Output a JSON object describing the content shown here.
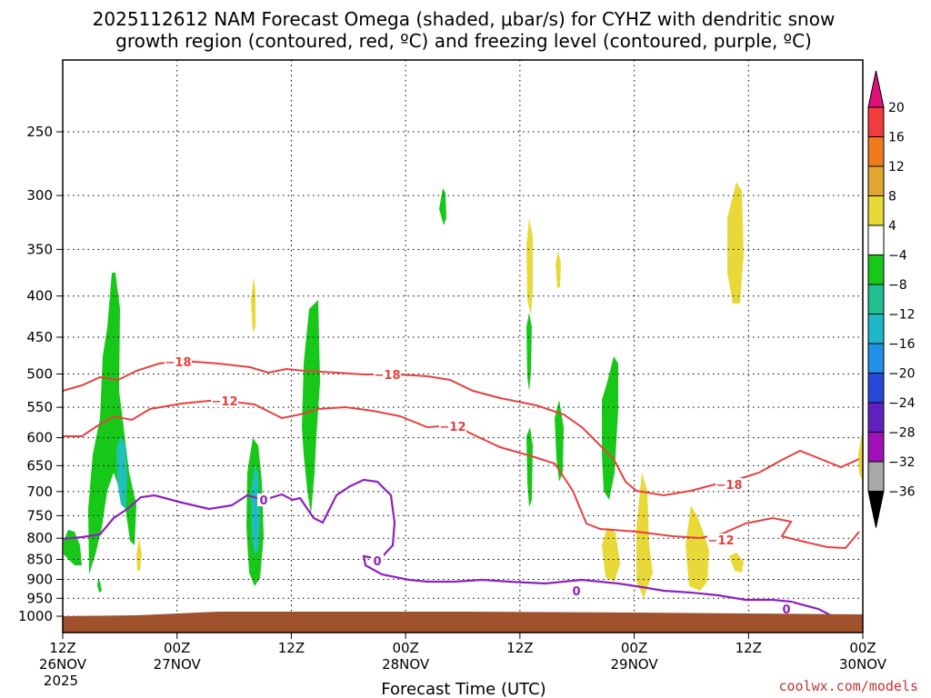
{
  "chart_data": {
    "type": "contour",
    "title": [
      "2025112612 NAM Forecast Omega (shaded, μbar/s) for CYHZ with dendritic snow",
      "growth region (contoured, red, ºC) and freezing level (contoured, purple, ºC)"
    ],
    "xlabel": "Forecast Time (UTC)",
    "credit": "coolwx.com/models",
    "y_levels": [
      250,
      300,
      350,
      400,
      450,
      500,
      550,
      600,
      650,
      700,
      750,
      800,
      850,
      900,
      950,
      1000
    ],
    "x_ticks": [
      {
        "line1": "12Z",
        "line2": "26NOV",
        "line3": "2025"
      },
      {
        "line1": "00Z",
        "line2": "27NOV",
        "line3": ""
      },
      {
        "line1": "12Z",
        "line2": "",
        "line3": ""
      },
      {
        "line1": "00Z",
        "line2": "28NOV",
        "line3": ""
      },
      {
        "line1": "12Z",
        "line2": "",
        "line3": ""
      },
      {
        "line1": "00Z",
        "line2": "29NOV",
        "line3": ""
      },
      {
        "line1": "12Z",
        "line2": "",
        "line3": ""
      },
      {
        "line1": "00Z",
        "line2": "30NOV",
        "line3": ""
      }
    ],
    "x_hours": [
      0,
      12,
      24,
      36,
      48,
      60,
      72,
      84
    ],
    "colorbar": {
      "labels": [
        "20",
        "16",
        "12",
        "8",
        "4",
        "−4",
        "−8",
        "−12",
        "−16",
        "−20",
        "−24",
        "−28",
        "−32",
        "−36"
      ],
      "colors": [
        "#dd1177",
        "#f03c3c",
        "#f07a1e",
        "#e0a830",
        "#e8d838",
        "#ffffff",
        "#18c818",
        "#20c090",
        "#20b8c8",
        "#2090e8",
        "#2848d8",
        "#6020c0",
        "#a010b8",
        "#a8a8a8",
        "#000000"
      ]
    },
    "contour_labels": {
      "m18": "−18",
      "m12": "−12",
      "zero": "0"
    },
    "colors": {
      "red_contour": "#e84040",
      "purple_contour": "#9020c0",
      "ground": "#a0522d"
    }
  }
}
